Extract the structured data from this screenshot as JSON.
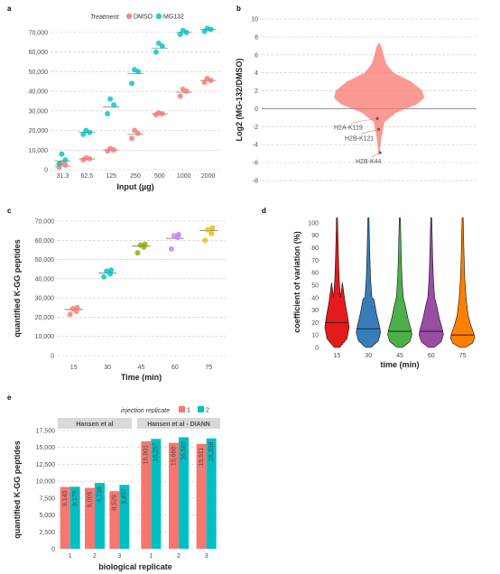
{
  "panel_labels": {
    "a": "a",
    "b": "b",
    "c": "c",
    "d": "d",
    "e": "e"
  },
  "chart_data": [
    {
      "panel": "a",
      "type": "scatter",
      "xlabel": "Input (µg)",
      "ylabel": "",
      "categories": [
        "31.3",
        "62.5",
        "125",
        "250",
        "500",
        "1000",
        "2000"
      ],
      "ylim": [
        0,
        75000
      ],
      "yticks": [
        "0",
        "10,000",
        "20,000",
        "30,000",
        "40,000",
        "50,000",
        "60,000",
        "70,000"
      ],
      "legend": {
        "title": "Treatment",
        "placement": "top"
      },
      "colors": {
        "DMSO": "#f8766d",
        "MG132": "#00bfc4"
      },
      "series": [
        {
          "name": "DMSO",
          "mean": [
            1800,
            5500,
            10000,
            18000,
            28500,
            39500,
            45500
          ],
          "points": [
            [
              1200,
              2400,
              3500
            ],
            [
              5000,
              5600,
              6000
            ],
            [
              9500,
              10000,
              10800
            ],
            [
              16000,
              18500,
              20000
            ],
            [
              28000,
              28500,
              29000
            ],
            [
              37500,
              40000,
              41000
            ],
            [
              44500,
              45500,
              46500
            ]
          ]
        },
        {
          "name": "MG132",
          "mean": [
            4500,
            19000,
            32000,
            49000,
            62000,
            70000,
            71500
          ],
          "points": [
            [
              3000,
              5000,
              8000
            ],
            [
              18000,
              19000,
              20000
            ],
            [
              28500,
              33000,
              36000
            ],
            [
              44000,
              50000,
              51000
            ],
            [
              60000,
              63000,
              64500
            ],
            [
              69000,
              70000,
              71000
            ],
            [
              70500,
              71500,
              72000
            ]
          ]
        }
      ]
    },
    {
      "panel": "b",
      "type": "violin",
      "ylabel": "Log2 (MG-132/DMSO)",
      "ylim": [
        -8.5,
        10.5
      ],
      "yticks": [
        "-8",
        "-6",
        "-4",
        "-2",
        "0",
        "2",
        "4",
        "6",
        "8",
        "10"
      ],
      "color": "#f8766d",
      "annotations": [
        {
          "label": "H2A-K119",
          "y": -1.1
        },
        {
          "label": "H2B-K121",
          "y": -2.3
        },
        {
          "label": "H2B-K44",
          "y": -4.9
        }
      ]
    },
    {
      "panel": "c",
      "type": "scatter",
      "xlabel": "Time (min)",
      "ylabel": "quantified K-GG peptides",
      "categories": [
        "15",
        "30",
        "45",
        "60",
        "75"
      ],
      "ylim": [
        0,
        70000
      ],
      "yticks": [
        "0",
        "10,000",
        "20,000",
        "30,000",
        "40,000",
        "50,000",
        "60,000",
        "70,000"
      ],
      "colors": [
        "#f8766d",
        "#00bfc4",
        "#7cae00",
        "#c77cff",
        "#e7b800"
      ],
      "mean": [
        24000,
        43000,
        57000,
        61000,
        65000
      ],
      "points": [
        [
          21500,
          23000,
          24500,
          25000
        ],
        [
          41000,
          42500,
          44000,
          44500
        ],
        [
          53500,
          56500,
          57500,
          58000
        ],
        [
          55500,
          61500,
          62500,
          63000
        ],
        [
          60000,
          63500,
          65500,
          66500
        ]
      ]
    },
    {
      "panel": "d",
      "type": "violin",
      "xlabel": "time (min)",
      "ylabel": "coefficient of variation (%)",
      "categories": [
        "15",
        "30",
        "45",
        "60",
        "75"
      ],
      "ylim": [
        0,
        105
      ],
      "yticks": [
        "0",
        "10",
        "20",
        "30",
        "40",
        "50",
        "60",
        "70",
        "80",
        "90",
        "100"
      ],
      "colors": [
        "#e41a1c",
        "#377eb8",
        "#4daf4a",
        "#984ea3",
        "#ff7f00"
      ],
      "medians": [
        20,
        15,
        13,
        13,
        10
      ]
    },
    {
      "panel": "e",
      "type": "bar",
      "xlabel": "biological replicate",
      "ylabel": "quantified K-GG peptides",
      "ylim": [
        0,
        17500
      ],
      "yticks": [
        "0",
        "2,500",
        "5,000",
        "7,500",
        "10,000",
        "12,500",
        "15,000",
        "17,500"
      ],
      "legend": {
        "title": "injection replicate",
        "items": [
          "1",
          "2"
        ],
        "placement": "top"
      },
      "colors": {
        "1": "#f8766d",
        "2": "#00bfc4"
      },
      "facets": [
        {
          "title": "Hansen et al",
          "categories": [
            "1",
            "2",
            "3"
          ],
          "series": [
            {
              "name": "1",
              "values": [
                9140,
                9005,
                8529
              ]
            },
            {
              "name": "2",
              "values": [
                9178,
                9738,
                9457
              ]
            }
          ],
          "labels": [
            [
              "9,140",
              "9,178"
            ],
            [
              "9,005",
              "9,738"
            ],
            [
              "8,529",
              "9,457"
            ]
          ]
        },
        {
          "title": "Hansen et al - DIANN",
          "categories": [
            "1",
            "2",
            "3"
          ],
          "series": [
            {
              "name": "1",
              "values": [
                15901,
                15668,
                15511
              ]
            },
            {
              "name": "2",
              "values": [
                16257,
                16503,
                16338
              ]
            }
          ],
          "labels": [
            [
              "15,901",
              "16,257"
            ],
            [
              "15,668",
              "16,503"
            ],
            [
              "15,511",
              "16,338"
            ]
          ]
        }
      ]
    }
  ]
}
